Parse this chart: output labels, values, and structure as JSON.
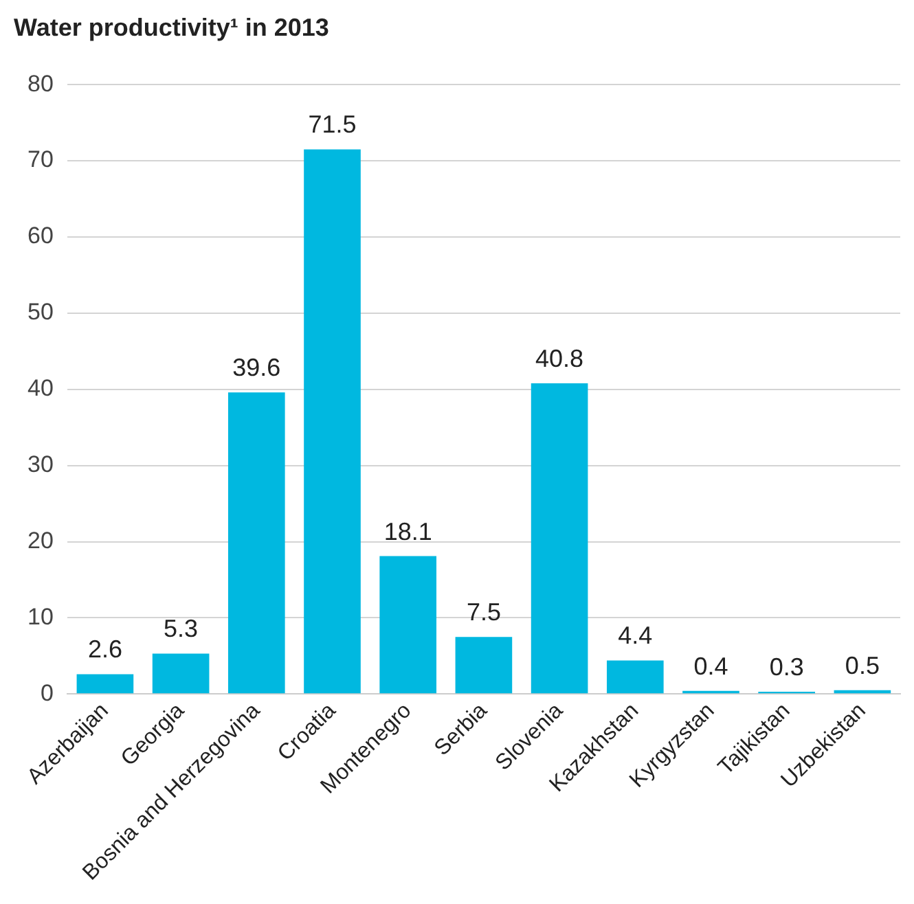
{
  "chart_data": {
    "type": "bar",
    "title": "Water productivity¹ in 2013",
    "categories": [
      "Azerbaijan",
      "Georgia",
      "Bosnia and Herzegovina",
      "Croatia",
      "Montenegro",
      "Serbia",
      "Slovenia",
      "Kazakhstan",
      "Kyrgyzstan",
      "Tajikistan",
      "Uzbekistan"
    ],
    "values": [
      2.6,
      5.3,
      39.6,
      71.5,
      18.1,
      7.5,
      40.8,
      4.4,
      0.4,
      0.3,
      0.5
    ],
    "color": "#00b8e0",
    "ylim": [
      0,
      80
    ],
    "yticks": [
      0,
      10,
      20,
      30,
      40,
      50,
      60,
      70,
      80
    ],
    "grid": "y",
    "data_labels": true
  }
}
